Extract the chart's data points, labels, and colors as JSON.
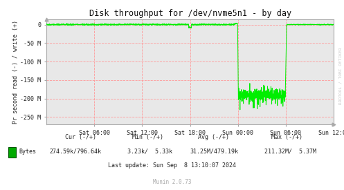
{
  "title": "Disk throughput for /dev/nvme5n1 - by day",
  "ylabel": "Pr second read (-) / write (+)",
  "bg_color": "#FFFFFF",
  "plot_bg_color": "#E8E8E8",
  "grid_color": "#FF9999",
  "line_color": "#00EE00",
  "border_color": "#AAAAAA",
  "x_tick_labels": [
    "Sat 06:00",
    "Sat 12:00",
    "Sat 18:00",
    "Sun 00:00",
    "Sun 06:00",
    "Sun 12:00"
  ],
  "y_tick_labels": [
    "0",
    "-50 M",
    "-100 M",
    "-150 M",
    "-200 M",
    "-250 M"
  ],
  "ylim": [
    -270000000,
    15000000
  ],
  "legend_color": "#00AA00",
  "watermark": "RRDTOOL / TOBI OETIKER",
  "footer_munin": "Munin 2.0.73"
}
